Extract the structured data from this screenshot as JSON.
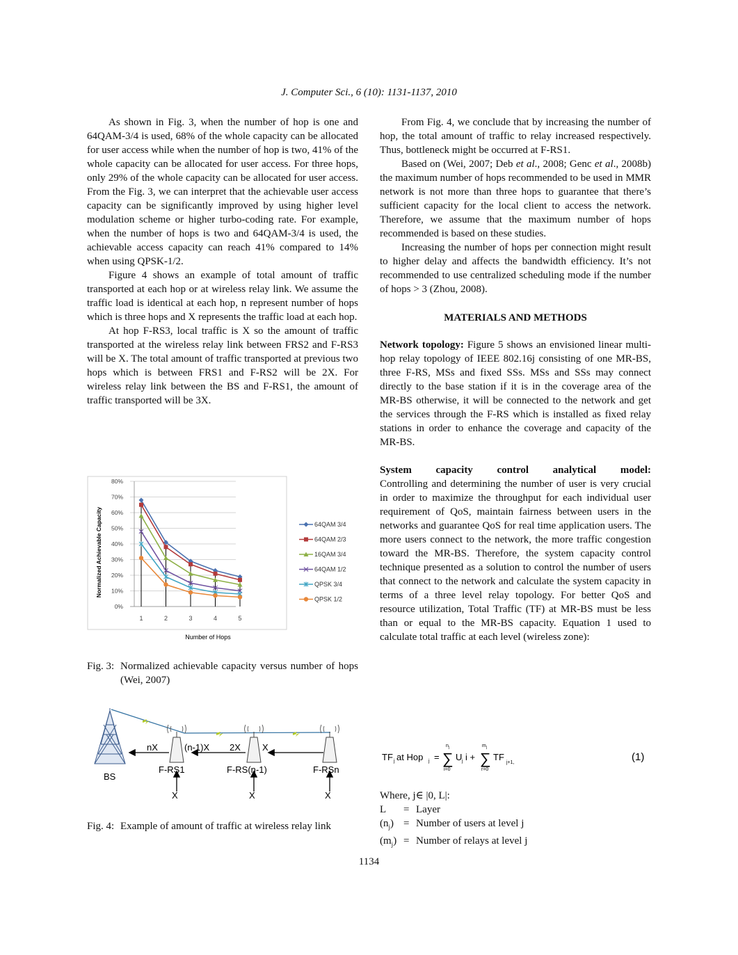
{
  "header": {
    "running_title": "J. Computer Sci., 6 (10): 1131-1137, 2010"
  },
  "left_col": {
    "p1": "As shown in Fig. 3, when the number of hop is one and 64QAM-3/4 is used, 68% of the whole capacity can be allocated for user access while when the number of hop is two, 41% of the whole capacity can be allocated for user access. For three hops, only 29% of the whole capacity can be allocated for user access. From the Fig. 3, we can interpret that the achievable user access capacity can be significantly improved by using higher level modulation scheme or higher turbo-coding rate. For example, when the number of hops is two and 64QAM-3/4 is used, the achievable access capacity can reach 41% compared to 14% when using QPSK-1/2.",
    "p2": "Figure 4 shows an example of total amount of traffic transported at each hop or at wireless relay link. We assume the traffic load is identical at each hop, n represent number of hops which is three hops and X represents the traffic load at each hop.",
    "p3": "At hop F-RS3, local traffic is X so the amount of traffic transported at the wireless relay link between FRS2 and F-RS3 will be X. The total amount of traffic transported at previous two hops which is between FRS1 and F-RS2 will be 2X. For wireless relay link between the BS and F-RS1, the amount of traffic transported will be 3X."
  },
  "fig3": {
    "caption_label": "Fig. 3:",
    "caption_text": "Normalized achievable capacity versus number of hops (Wei, 2007)"
  },
  "fig4": {
    "caption_label": "Fig. 4:",
    "caption_text": "Example of amount of traffic at wireless relay link",
    "bs": "BS",
    "frs1": "F-RS1",
    "frsn1": "F-RS(n-1)",
    "frsn": "F-RSn",
    "nx": "nX",
    "n1x": "(n-1)X",
    "x2": "2X",
    "x1": "X",
    "x": "X"
  },
  "chart_data": {
    "type": "line",
    "xlabel": "Number of Hops",
    "ylabel": "Normalized Achievable Capacity",
    "x": [
      1,
      2,
      3,
      4,
      5
    ],
    "ylim": [
      0,
      80
    ],
    "yticks": [
      "0%",
      "10%",
      "20%",
      "30%",
      "40%",
      "50%",
      "60%",
      "70%",
      "80%"
    ],
    "legend_position": "right",
    "series": [
      {
        "name": "64QAM 3/4",
        "color": "#4a72b0",
        "marker": "diamond",
        "values": [
          68,
          41,
          29,
          23,
          19
        ]
      },
      {
        "name": "64QAM 2/3",
        "color": "#b43b3b",
        "marker": "square",
        "values": [
          65,
          38,
          27,
          21,
          17
        ]
      },
      {
        "name": "16QAM 3/4",
        "color": "#8db046",
        "marker": "triangle",
        "values": [
          58,
          31,
          21,
          17,
          14
        ]
      },
      {
        "name": "64QAM 1/2",
        "color": "#6f52a0",
        "marker": "x",
        "values": [
          48,
          23,
          15,
          12,
          10
        ]
      },
      {
        "name": "QPSK 3/4",
        "color": "#41a5c4",
        "marker": "star",
        "values": [
          40,
          19,
          12,
          9,
          8
        ]
      },
      {
        "name": "QPSK 1/2",
        "color": "#e8883a",
        "marker": "circle",
        "values": [
          31,
          14,
          9,
          7,
          6
        ]
      }
    ]
  },
  "right_col": {
    "p1": "From Fig. 4, we conclude that by increasing the number of hop, the total amount of traffic to relay increased respectively. Thus, bottleneck might be occurred at F-RS1.",
    "p2_a": "Based on (Wei, 2007; Deb ",
    "p2_etal1": "et al",
    "p2_b": "., 2008; Genc ",
    "p2_etal2": "et al",
    "p2_c": "., 2008b) the maximum number of hops recommended to be used in MMR network is not more than three hops to guarantee that there’s sufficient capacity for the local client to access the network. Therefore, we assume that the maximum number of hops recommended is based on these studies.",
    "p3": "Increasing the number of hops per connection might result to higher delay and affects the bandwidth efficiency. It’s not recommended to use centralized scheduling mode if the number of hops > 3 (Zhou, 2008).",
    "heading": "MATERIALS AND METHODS",
    "p4_title": "Network topology:",
    "p4_body": "Figure 5 shows an envisioned linear multi-hop relay topology of IEEE 802.16j consisting of one MR-BS, three F-RS, MSs and fixed SSs. MSs and SSs may connect directly to the base station if it is in the coverage area of the MR-BS otherwise, it will be connected to the network and get the services through the F-RS which is installed as fixed relay stations in order to enhance the coverage and capacity of the MR-BS.",
    "p5_title": "System capacity control analytical model:",
    "p5_body": "Controlling and determining the number of user is very crucial in order to maximize the throughput for each individual user requirement of QoS, maintain fairness between users in the networks and guarantee QoS for real time application users. The more users connect to the network, the more traffic congestion toward the MR-BS. Therefore, the system capacity control technique presented as a solution to control the number of users that connect to the network and calculate the system capacity in terms of a three level relay topology. For better QoS and resource utilization, Total Traffic (TF) at MR-BS must be less than or equal to the MR-BS capacity. Equation 1 used to calculate total traffic at each level (wireless zone):"
  },
  "equation": {
    "lhs": "TF",
    "lhs_sub": "j",
    "at_hop": " at Hop",
    "hop_sub": "j",
    "eq": "=",
    "sum1_top": "n",
    "sum1_top_sub": "j",
    "sum1_bot": "i=0",
    "u": "U",
    "u_sub": "j",
    "i": "i +",
    "sum2_top": "m",
    "sum2_top_sub": "j",
    "sum2_bot": "r=0",
    "tf": "TF",
    "tf_sub": "j+1,",
    "number": "(1)"
  },
  "where": {
    "intro": "Where, j∈ |0, L|:",
    "rows": [
      {
        "sym": "L",
        "eq": "=",
        "desc": "Layer"
      },
      {
        "sym": "(n",
        "sub": "j",
        "close": ")",
        "eq": "=",
        "desc": "Number of users at level j"
      },
      {
        "sym": "(m",
        "sub": "j",
        "close": ")",
        "eq": "=",
        "desc": "Number of relays at level j"
      }
    ]
  },
  "page_number": "1134"
}
